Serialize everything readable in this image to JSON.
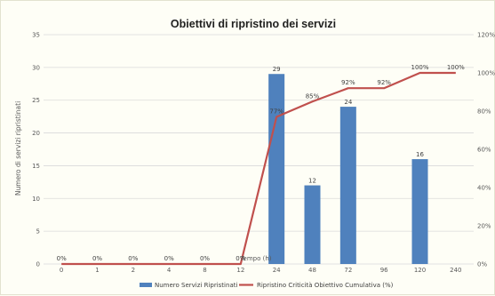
{
  "chart_data": {
    "type": "bar",
    "title": "Obiettivi di ripristino dei servizi",
    "xlabel": "Tempo (h)",
    "ylabel": "Numero di servizi ripristinati",
    "ylim": [
      0,
      35
    ],
    "y2lim": [
      0,
      1.2
    ],
    "y_ticks": [
      "0",
      "5",
      "10",
      "15",
      "20",
      "25",
      "30",
      "35"
    ],
    "y2_ticks": [
      "0%",
      "20%",
      "40%",
      "60%",
      "80%",
      "100%",
      "120%"
    ],
    "categories": [
      "0",
      "1",
      "2",
      "4",
      "8",
      "12",
      "24",
      "48",
      "72",
      "96",
      "120",
      "240"
    ],
    "grid": true,
    "legend_position": "bottom",
    "series": [
      {
        "name": "Numero Servizi Ripristinati",
        "type": "bar",
        "axis": "left",
        "color": "#4f81bd",
        "values": [
          0,
          0,
          0,
          0,
          0,
          0,
          29,
          12,
          24,
          0,
          16,
          0
        ],
        "data_labels": [
          "",
          "",
          "",
          "",
          "",
          "",
          "29",
          "12",
          "24",
          "",
          "16",
          ""
        ]
      },
      {
        "name": "Ripristino Criticità Obiettivo Cumulativa (%)",
        "type": "line",
        "axis": "right",
        "color": "#c0504d",
        "values": [
          0,
          0,
          0,
          0,
          0,
          0,
          0.77,
          0.85,
          0.92,
          0.92,
          1.0,
          1.0
        ],
        "data_labels": [
          "0%",
          "0%",
          "0%",
          "0%",
          "0%",
          "0%",
          "77%",
          "85%",
          "92%",
          "92%",
          "100%",
          "100%"
        ]
      }
    ]
  }
}
